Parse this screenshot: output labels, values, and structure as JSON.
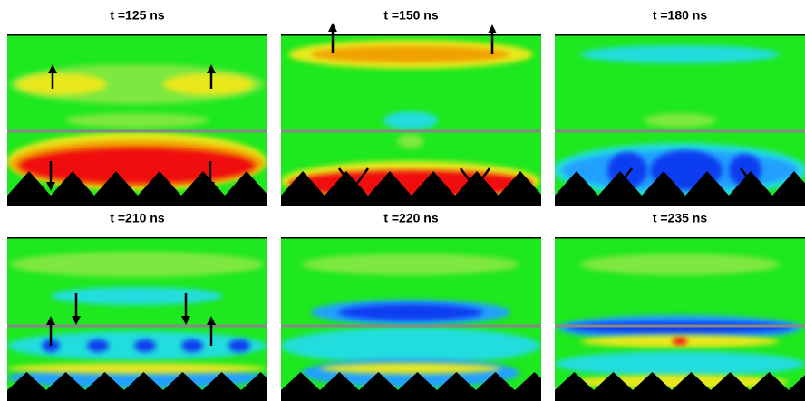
{
  "panels": [
    {
      "title": "t =125 ns"
    },
    {
      "title": "t =150 ns"
    },
    {
      "title": "t =180 ns"
    },
    {
      "title": "t =210 ns"
    },
    {
      "title": "t =220 ns"
    },
    {
      "title": "t =235 ns"
    }
  ]
}
